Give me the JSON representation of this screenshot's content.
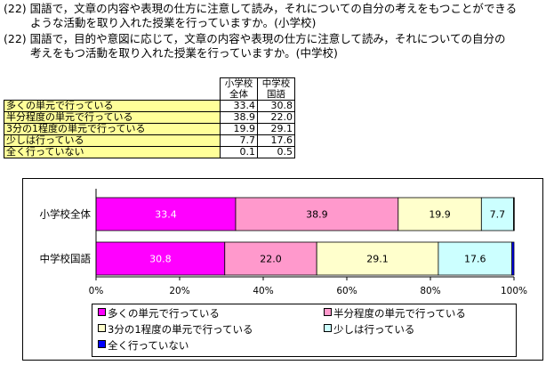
{
  "questions": {
    "q1_line1": "(22) 国語で，文章の内容や表現の仕方に注意して読み，それについての自分の考えをもつことができる",
    "q1_line2": "ような活動を取り入れた授業を行っていますか。(小学校)",
    "q2_line1": "(22) 国語で，目的や意図に応じて，文章の内容や表現の仕方に注意して読み，それについての自分の",
    "q2_line2": "考えをもつ活動を取り入れた授業を行っていますか。(中学校)"
  },
  "table": {
    "col1_line1": "小学校",
    "col1_line2": "全体",
    "col2_line1": "中学校",
    "col2_line2": "国語",
    "rows": [
      {
        "label": "多くの単元で行っている",
        "v1": "33.4",
        "v2": "30.8"
      },
      {
        "label": "半分程度の単元で行っている",
        "v1": "38.9",
        "v2": "22.0"
      },
      {
        "label": "3分の1程度の単元で行っている",
        "v1": "19.9",
        "v2": "29.1"
      },
      {
        "label": "少しは行っている",
        "v1": "7.7",
        "v2": "17.6"
      },
      {
        "label": "全く行っていない",
        "v1": "0.1",
        "v2": "0.5"
      }
    ]
  },
  "chart_data": {
    "type": "bar",
    "orientation": "horizontal",
    "stacked": true,
    "categories": [
      "小学校全体",
      "中学校国語"
    ],
    "series": [
      {
        "name": "多くの単元で行っている",
        "values": [
          33.4,
          30.8
        ],
        "color": "#ff00ff",
        "label_color": "#ffffff"
      },
      {
        "name": "半分程度の単元で行っている",
        "values": [
          38.9,
          22.0
        ],
        "color": "#ff99cc",
        "label_color": "#000000"
      },
      {
        "name": "3分の1程度の単元で行っている",
        "values": [
          19.9,
          29.1
        ],
        "color": "#ffffcc",
        "label_color": "#000000"
      },
      {
        "name": "少しは行っている",
        "values": [
          7.7,
          17.6
        ],
        "color": "#ccffff",
        "label_color": "#000000"
      },
      {
        "name": "全く行っていない",
        "values": [
          0.1,
          0.5
        ],
        "color": "#0000ff",
        "label_color": "#000000"
      }
    ],
    "xlim": [
      0,
      100
    ],
    "xticks": [
      "0%",
      "20%",
      "40%",
      "60%",
      "80%",
      "100%"
    ],
    "legend_position": "bottom",
    "grid": false
  }
}
